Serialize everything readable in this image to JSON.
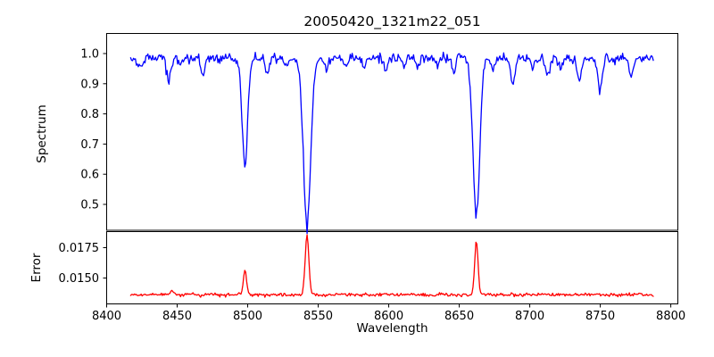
{
  "figure_title": "20050420_1321m22_051",
  "chart_data": {
    "type": "line",
    "title": "20050420_1321m22_051",
    "xlabel": "Wavelength",
    "xlim": [
      8400,
      8805
    ],
    "x_ticks": [
      8400,
      8450,
      8500,
      8550,
      8600,
      8650,
      8700,
      8750,
      8800
    ],
    "x_start": 8417,
    "x_end": 8788,
    "x_step": 0.68,
    "grid": false,
    "legend": "none",
    "panels": [
      {
        "name": "spectrum",
        "ylabel": "Spectrum",
        "color": "#0000ff",
        "ylim": [
          0.4142,
          1.0666
        ],
        "y_ticks": [
          1.0,
          0.9,
          0.8,
          0.7,
          0.6,
          0.5
        ],
        "y_tick_labels": [
          "1.0",
          "0.9",
          "0.8",
          "0.7",
          "0.6",
          "0.5"
        ],
        "base_level": 0.985,
        "noise_sigma": 0.008,
        "noise_seed": 7,
        "features_note": "gaussian absorption lines: [center_wavelength, amplitude, sigma]; deep lines are the Ca II triplet 8498/8542/8662",
        "features": [
          [
            8424,
            -0.03,
            2.0
          ],
          [
            8444,
            -0.075,
            1.5
          ],
          [
            8452,
            -0.028,
            1.2
          ],
          [
            8468,
            -0.05,
            1.4
          ],
          [
            8498.02,
            -0.355,
            2.0
          ],
          [
            8514,
            -0.055,
            1.3
          ],
          [
            8527,
            -0.028,
            1.2
          ],
          [
            8542.09,
            -0.55,
            2.6
          ],
          [
            8556,
            -0.04,
            1.3
          ],
          [
            8570,
            -0.025,
            1.2
          ],
          [
            8582,
            -0.035,
            1.3
          ],
          [
            8598,
            -0.042,
            1.3
          ],
          [
            8611,
            -0.028,
            1.2
          ],
          [
            8621,
            -0.035,
            1.2
          ],
          [
            8634,
            -0.025,
            1.2
          ],
          [
            8646,
            -0.045,
            1.3
          ],
          [
            8662.14,
            -0.515,
            2.4
          ],
          [
            8674,
            -0.04,
            1.3
          ],
          [
            8688,
            -0.085,
            1.5
          ],
          [
            8702,
            -0.04,
            1.3
          ],
          [
            8713,
            -0.06,
            1.4
          ],
          [
            8722,
            -0.035,
            1.2
          ],
          [
            8735,
            -0.075,
            1.5
          ],
          [
            8750,
            -0.105,
            1.6
          ],
          [
            8772,
            -0.065,
            1.4
          ]
        ]
      },
      {
        "name": "error",
        "ylabel": "Error",
        "color": "#ff0000",
        "ylim": [
          0.012868,
          0.018824
        ],
        "y_ticks": [
          0.0175,
          0.015
        ],
        "y_tick_labels": [
          "0.0175",
          "0.0150"
        ],
        "base_level": 0.01362,
        "noise_sigma": 7e-05,
        "noise_seed": 13,
        "features_note": "gaussian error peaks at the strong absorption lines: [center_wavelength, amplitude, sigma]",
        "features": [
          [
            8446,
            0.00028,
            1.3
          ],
          [
            8498.02,
            0.00195,
            1.1
          ],
          [
            8542.09,
            0.00495,
            1.3
          ],
          [
            8662.14,
            0.0044,
            1.2
          ]
        ]
      }
    ],
    "text_color": "#000000",
    "spine_color": "#000000",
    "background_color": "#ffffff"
  }
}
